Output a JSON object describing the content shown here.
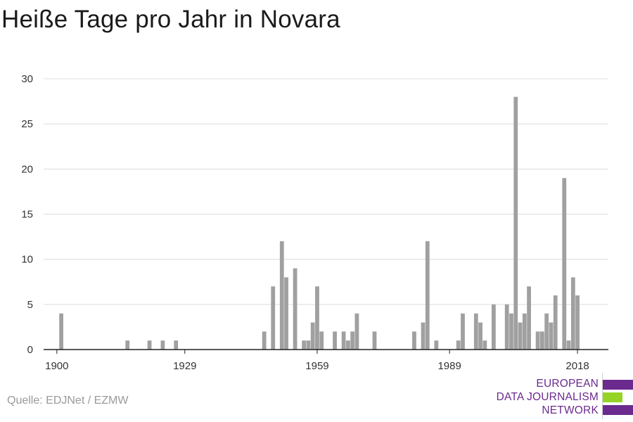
{
  "title": "Heiße Tage pro Jahr in Novara",
  "source": "Quelle: EDJNet / EZMW",
  "logo": {
    "line1": "EUROPEAN",
    "line2": "DATA JOURNALISM",
    "line3": "NETWORK",
    "colors": {
      "purple": "#6b2a8e",
      "green": "#95d327"
    }
  },
  "chart_data": {
    "type": "bar",
    "title": "Heiße Tage pro Jahr in Novara",
    "xlabel": "",
    "ylabel": "",
    "x": [
      1901,
      1916,
      1921,
      1924,
      1927,
      1947,
      1949,
      1951,
      1952,
      1954,
      1956,
      1957,
      1958,
      1959,
      1960,
      1961,
      1963,
      1965,
      1966,
      1967,
      1968,
      1972,
      1981,
      1983,
      1984,
      1986,
      1991,
      1992,
      1995,
      1996,
      1997,
      1999,
      2002,
      2003,
      2004,
      2005,
      2006,
      2007,
      2009,
      2010,
      2011,
      2012,
      2013,
      2014,
      2015,
      2016,
      2017,
      2018
    ],
    "values": [
      4,
      1,
      1,
      1,
      1,
      2,
      7,
      12,
      8,
      9,
      1,
      1,
      3,
      7,
      2,
      0,
      2,
      2,
      1,
      2,
      4,
      2,
      2,
      3,
      12,
      1,
      1,
      4,
      4,
      3,
      1,
      5,
      5,
      4,
      28,
      3,
      4,
      7,
      2,
      2,
      4,
      3,
      6,
      0,
      19,
      1,
      8,
      6
    ],
    "xlim": [
      1897,
      2025
    ],
    "ylim": [
      0,
      30
    ],
    "x_ticks": [
      1900,
      1929,
      1959,
      1989,
      2018
    ],
    "y_ticks": [
      0,
      5,
      10,
      15,
      20,
      25,
      30
    ],
    "bar_color": "#a0a0a0",
    "grid": true,
    "legend": "none"
  }
}
